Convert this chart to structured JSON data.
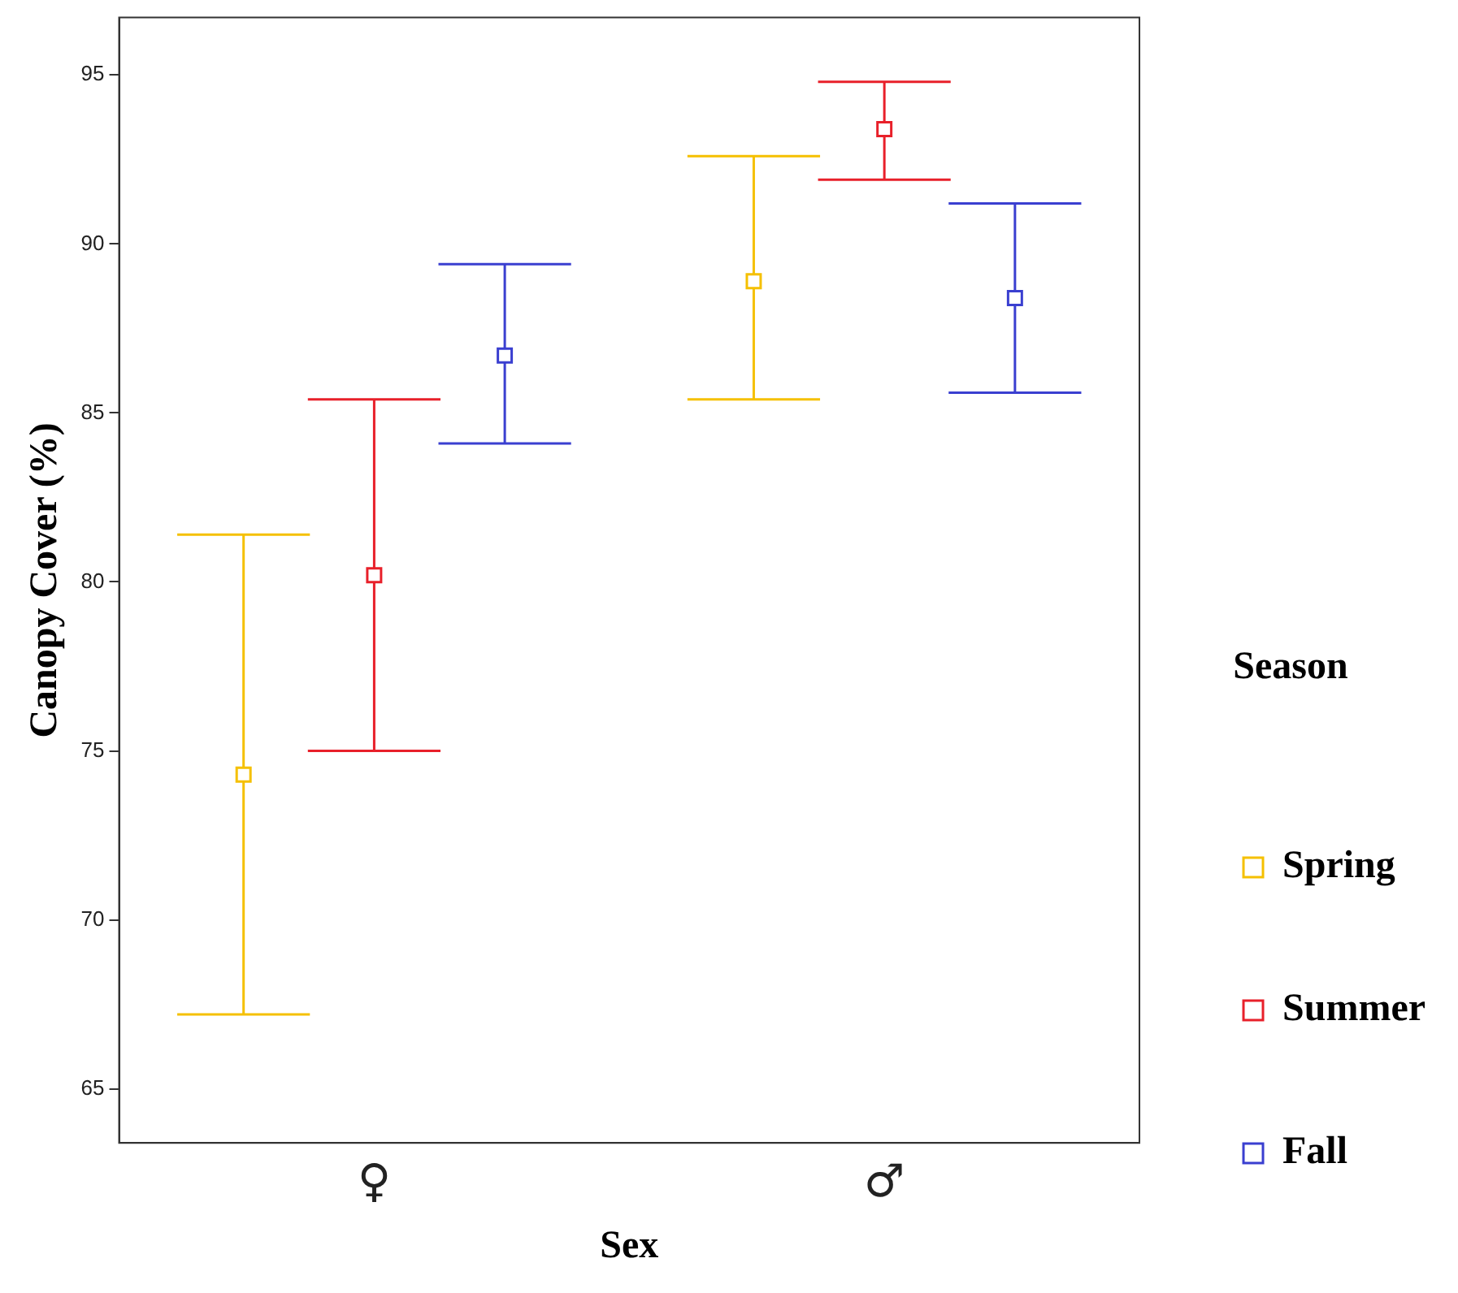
{
  "chart_data": {
    "type": "scatter",
    "xlabel": "Sex",
    "ylabel": "Canopy Cover (%)",
    "legend_title": "Season",
    "categories": [
      "♀",
      "♂"
    ],
    "series": [
      {
        "name": "Spring",
        "color": "#f5c000",
        "values": [
          74.3,
          88.9
        ],
        "errors": [
          [
            67.2,
            81.4
          ],
          [
            85.4,
            92.6
          ]
        ]
      },
      {
        "name": "Summer",
        "color": "#e8202a",
        "values": [
          80.2,
          93.4
        ],
        "errors": [
          [
            75.0,
            85.4
          ],
          [
            91.9,
            94.8
          ]
        ]
      },
      {
        "name": "Fall",
        "color": "#3a3fd0",
        "values": [
          86.7,
          88.4
        ],
        "errors": [
          [
            84.1,
            89.4
          ],
          [
            85.6,
            91.2
          ]
        ]
      }
    ],
    "ylim": [
      63.4,
      96.7
    ],
    "yticks": [
      65,
      70,
      75,
      80,
      85,
      90,
      95
    ],
    "grid": false,
    "legend": "right",
    "marker": "square"
  }
}
